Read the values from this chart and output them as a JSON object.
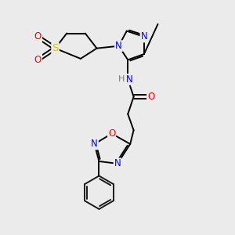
{
  "bg_color": "#ebebeb",
  "line_color": "#1a1a1a",
  "bond_width": 1.4,
  "atom_colors": {
    "N": "#0000ff",
    "O": "#ff0000",
    "S": "#cccc00",
    "H": "#777777",
    "C": "#1a1a1a"
  },
  "font_size": 8.5,
  "fig_size": [
    3.0,
    3.0
  ],
  "dpi": 100
}
